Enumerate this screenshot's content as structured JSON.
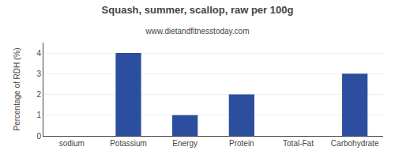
{
  "chart_data": {
    "type": "bar",
    "title": "Squash, summer, scallop, raw per 100g",
    "subtitle": "www.dietandfitnesstoday.com",
    "ylabel": "Percentage of RDH (%)",
    "categories": [
      "sodium",
      "Potassium",
      "Energy",
      "Protein",
      "Total-Fat",
      "Carbohydrate"
    ],
    "values": [
      0.0,
      4.0,
      1.0,
      2.0,
      0.0,
      3.0
    ],
    "color": "#2b4f9e",
    "ylim": [
      0,
      4.5
    ],
    "yticks": [
      0,
      1,
      2,
      3,
      4
    ],
    "grid": true
  }
}
